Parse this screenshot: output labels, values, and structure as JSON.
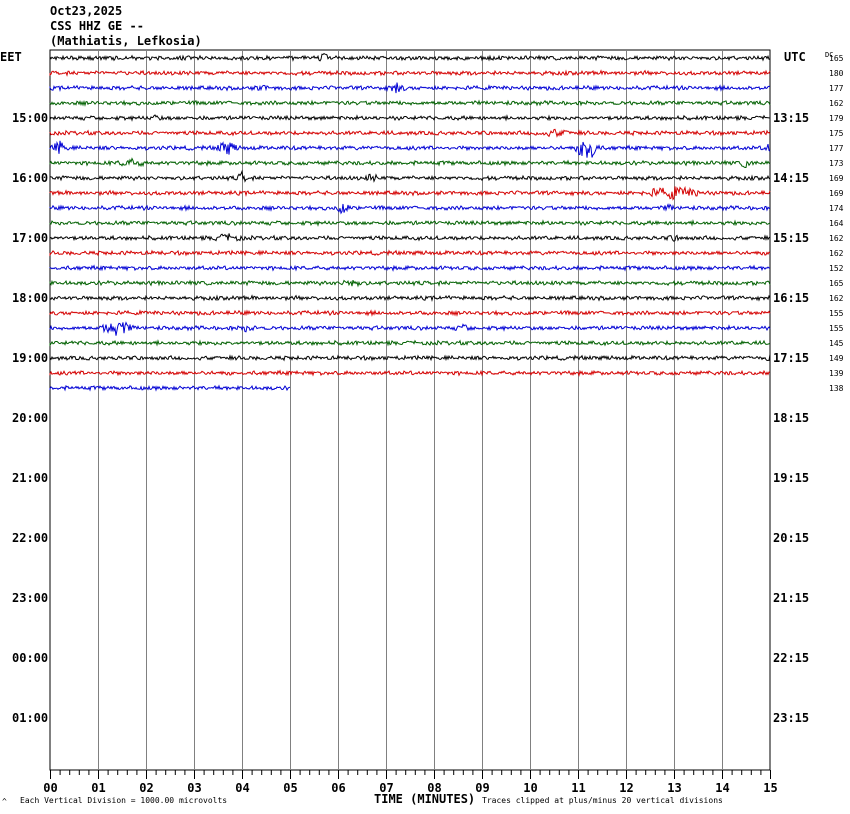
{
  "header": {
    "date": "Oct23,2025",
    "station": "CSS HHZ GE --",
    "location": "(Mathiatis, Lefkosia)"
  },
  "left_tz": "EET",
  "right_tz": "UTC",
  "dc_label": "DC",
  "footer": {
    "left_mark": "^",
    "scale_note": "Each Vertical Division = 1000.00 microvolts",
    "xlabel": "TIME (MINUTES)",
    "clip_note": "Traces clipped at plus/minus 20 vertical divisions"
  },
  "chart_data": {
    "type": "line",
    "xlabel": "TIME (MINUTES)",
    "xlim": [
      0,
      15
    ],
    "x_ticks": [
      "00",
      "01",
      "02",
      "03",
      "04",
      "05",
      "06",
      "07",
      "08",
      "09",
      "10",
      "11",
      "12",
      "13",
      "14",
      "15"
    ],
    "left_hour_labels": [
      "15:00",
      "16:00",
      "17:00",
      "18:00",
      "19:00",
      "20:00",
      "21:00",
      "22:00",
      "23:00",
      "00:00",
      "01:00"
    ],
    "right_hour_labels": [
      "13:15",
      "14:15",
      "15:15",
      "16:15",
      "17:15",
      "18:15",
      "19:15",
      "20:15",
      "21:15",
      "22:15",
      "23:15"
    ],
    "trace_colors": [
      "#000000",
      "#d40000",
      "#0000d4",
      "#006000"
    ],
    "traces": [
      {
        "dc": "165",
        "end_minute": 15
      },
      {
        "dc": "180",
        "end_minute": 15
      },
      {
        "dc": "177",
        "end_minute": 15
      },
      {
        "dc": "162",
        "end_minute": 15
      },
      {
        "dc": "179",
        "end_minute": 15
      },
      {
        "dc": "175",
        "end_minute": 15
      },
      {
        "dc": "177",
        "end_minute": 15
      },
      {
        "dc": "173",
        "end_minute": 15
      },
      {
        "dc": "169",
        "end_minute": 15
      },
      {
        "dc": "169",
        "end_minute": 15
      },
      {
        "dc": "174",
        "end_minute": 15
      },
      {
        "dc": "164",
        "end_minute": 15
      },
      {
        "dc": "162",
        "end_minute": 15
      },
      {
        "dc": "162",
        "end_minute": 15
      },
      {
        "dc": "152",
        "end_minute": 15
      },
      {
        "dc": "165",
        "end_minute": 15
      },
      {
        "dc": "162",
        "end_minute": 15
      },
      {
        "dc": "155",
        "end_minute": 15
      },
      {
        "dc": "155",
        "end_minute": 15
      },
      {
        "dc": "145",
        "end_minute": 15
      },
      {
        "dc": "149",
        "end_minute": 15
      },
      {
        "dc": "139",
        "end_minute": 15
      },
      {
        "dc": "138",
        "end_minute": 5
      }
    ]
  }
}
